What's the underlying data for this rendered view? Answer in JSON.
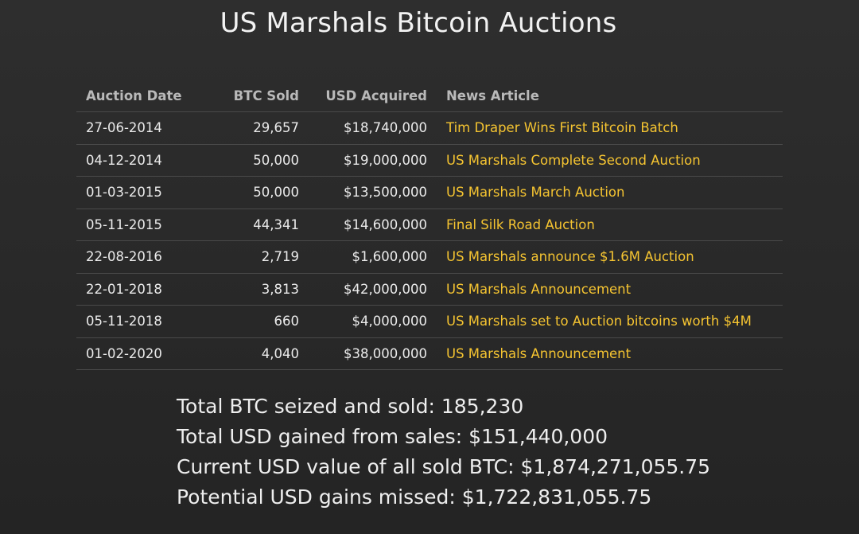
{
  "title": "US Marshals Bitcoin Auctions",
  "table": {
    "headers": {
      "date": "Auction Date",
      "btc": "BTC Sold",
      "usd": "USD Acquired",
      "news": "News Article"
    },
    "rows": [
      {
        "date": "27-06-2014",
        "btc": "29,657",
        "usd": "$18,740,000",
        "news": "Tim Draper Wins First Bitcoin Batch"
      },
      {
        "date": "04-12-2014",
        "btc": "50,000",
        "usd": "$19,000,000",
        "news": "US Marshals Complete Second Auction"
      },
      {
        "date": "01-03-2015",
        "btc": "50,000",
        "usd": "$13,500,000",
        "news": "US Marshals March Auction"
      },
      {
        "date": "05-11-2015",
        "btc": "44,341",
        "usd": "$14,600,000",
        "news": "Final Silk Road Auction"
      },
      {
        "date": "22-08-2016",
        "btc": "2,719",
        "usd": "$1,600,000",
        "news": "US Marshals announce $1.6M Auction"
      },
      {
        "date": "22-01-2018",
        "btc": "3,813",
        "usd": "$42,000,000",
        "news": "US Marshals Announcement"
      },
      {
        "date": "05-11-2018",
        "btc": "660",
        "usd": "$4,000,000",
        "news": "US Marshals set to Auction bitcoins worth $4M"
      },
      {
        "date": "01-02-2020",
        "btc": "4,040",
        "usd": "$38,000,000",
        "news": "US Marshals Announcement"
      }
    ]
  },
  "summary": {
    "total_btc": "Total BTC seized and sold: 185,230",
    "total_usd": "Total USD gained from sales: $151,440,000",
    "current_value": "Current USD value of all sold BTC: $1,874,271,055.75",
    "missed_gains": "Potential USD gains missed: $1,722,831,055.75"
  },
  "colors": {
    "background": "#2a2a2a",
    "link": "#f5c431",
    "header_text": "#b9b9b9",
    "row_divider": "#4a4a4a"
  }
}
